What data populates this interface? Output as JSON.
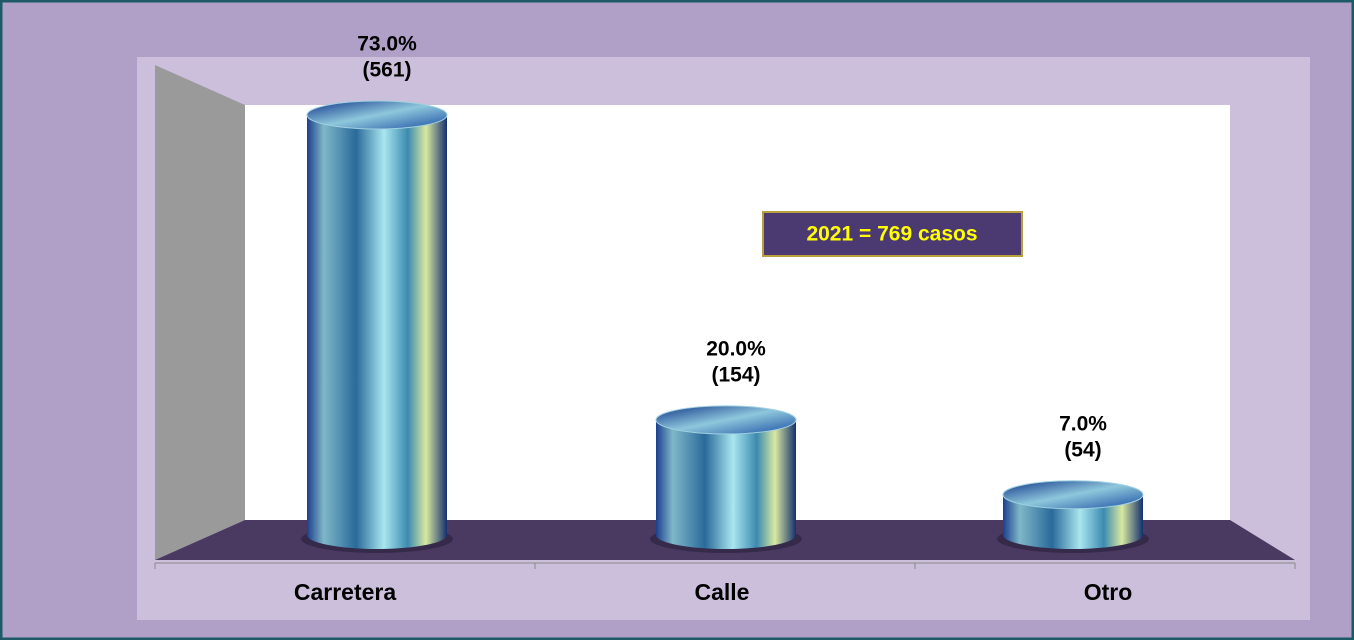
{
  "chart_data": {
    "type": "bar",
    "categories": [
      "Carretera",
      "Calle",
      "Otro"
    ],
    "values": [
      73.0,
      20.0,
      7.0
    ],
    "value_labels": [
      "73.0%",
      "20.0%",
      "7.0%"
    ],
    "counts": [
      561,
      154,
      54
    ],
    "count_labels": [
      "(561)",
      "(154)",
      "(54)"
    ],
    "annotation": "2021 = 769  casos"
  }
}
